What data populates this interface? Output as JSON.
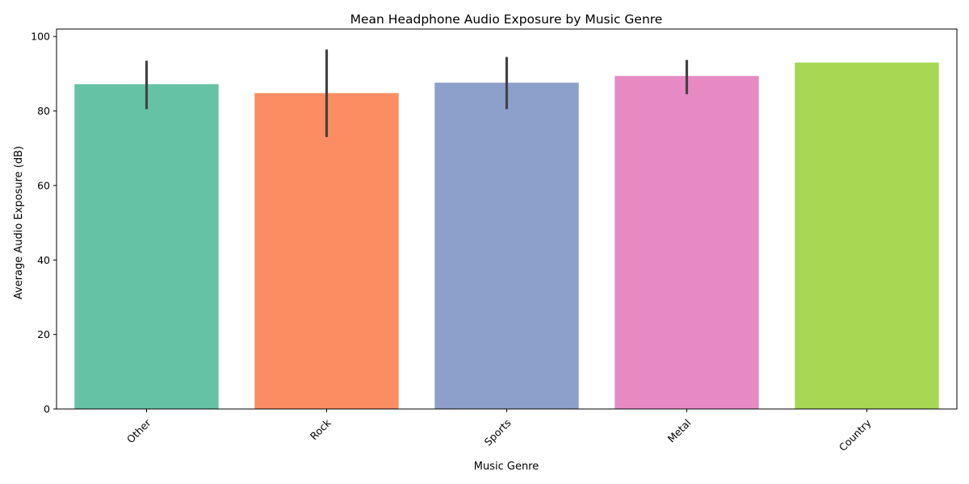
{
  "chart_data": {
    "type": "bar",
    "title": "Mean Headphone Audio Exposure by Music Genre",
    "xlabel": "Music Genre",
    "ylabel": "Average Audio Exposure (dB)",
    "ylim": [
      0,
      102
    ],
    "yticks": [
      0,
      20,
      40,
      60,
      80,
      100
    ],
    "ytick_labels": [
      "0",
      "20",
      "40",
      "60",
      "80",
      "100"
    ],
    "categories": [
      "Other",
      "Rock",
      "Sports",
      "Metal",
      "Country"
    ],
    "values": [
      87.2,
      84.8,
      87.6,
      89.4,
      93.0
    ],
    "error_low": [
      80.5,
      73.0,
      80.5,
      84.5,
      null
    ],
    "error_high": [
      93.5,
      96.5,
      94.5,
      93.7,
      null
    ],
    "colors": [
      "#66c2a5",
      "#fc8d62",
      "#8da0cb",
      "#e78ac3",
      "#a6d854"
    ],
    "grid": false,
    "xtick_rotation_deg": 45
  }
}
